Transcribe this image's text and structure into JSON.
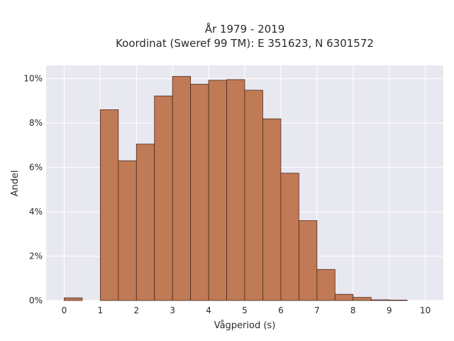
{
  "chart_data": {
    "type": "bar",
    "title_lines": [
      "År 1979 - 2019",
      "Koordinat (Sweref 99 TM): E 351623, N 6301572"
    ],
    "xlabel": "Vågperiod (s)",
    "ylabel": "Andel",
    "xlim": [
      -0.5,
      10.5
    ],
    "ylim": [
      0,
      10.6
    ],
    "x_ticks": [
      0,
      1,
      2,
      3,
      4,
      5,
      6,
      7,
      8,
      9,
      10
    ],
    "y_ticks": [
      0,
      2,
      4,
      6,
      8,
      10
    ],
    "y_tick_labels": [
      "0%",
      "2%",
      "4%",
      "6%",
      "8%",
      "10%"
    ],
    "bin_width": 0.5,
    "bins": [
      {
        "start": 0.0,
        "value": 0.12
      },
      {
        "start": 0.5,
        "value": 0.0
      },
      {
        "start": 1.0,
        "value": 8.6
      },
      {
        "start": 1.5,
        "value": 6.3
      },
      {
        "start": 2.0,
        "value": 7.05
      },
      {
        "start": 2.5,
        "value": 9.22
      },
      {
        "start": 3.0,
        "value": 10.1
      },
      {
        "start": 3.5,
        "value": 9.75
      },
      {
        "start": 4.0,
        "value": 9.93
      },
      {
        "start": 4.5,
        "value": 9.96
      },
      {
        "start": 5.0,
        "value": 9.48
      },
      {
        "start": 5.5,
        "value": 8.19
      },
      {
        "start": 6.0,
        "value": 5.74
      },
      {
        "start": 6.5,
        "value": 3.6
      },
      {
        "start": 7.0,
        "value": 1.4
      },
      {
        "start": 7.5,
        "value": 0.28
      },
      {
        "start": 8.0,
        "value": 0.14
      },
      {
        "start": 8.5,
        "value": 0.03
      },
      {
        "start": 9.0,
        "value": 0.02
      }
    ],
    "grid": true,
    "colors": {
      "bar_fill": "#c07a55",
      "bar_edge": "#4a2a1c",
      "plot_bg": "#e8e8f1",
      "grid": "#ffffff"
    }
  }
}
